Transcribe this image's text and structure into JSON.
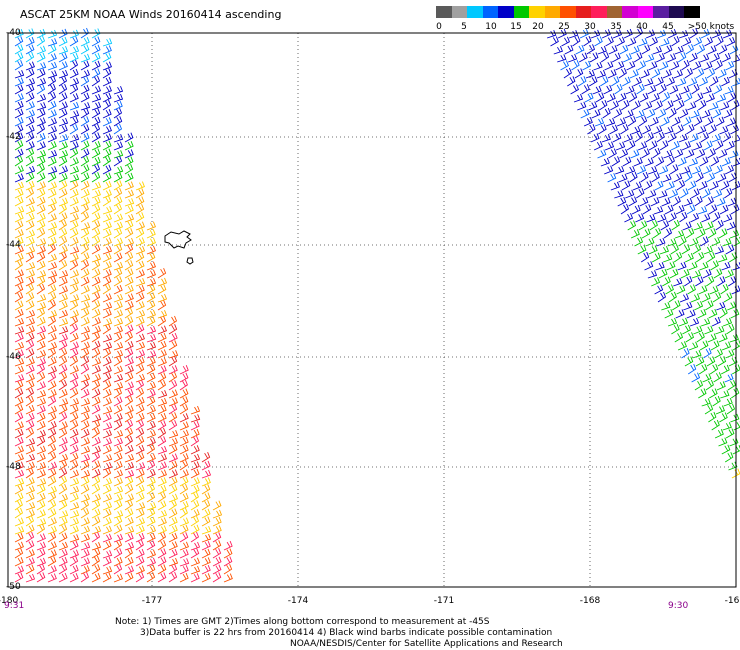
{
  "title": "ASCAT 25KM NOAA Winds 20160414 ascending",
  "legend": {
    "colors": [
      "#5a5a5a",
      "#a0a0a0",
      "#00c8ff",
      "#0064ff",
      "#0000c8",
      "#00c800",
      "#ffd200",
      "#ffaa00",
      "#ff5000",
      "#e61e1e",
      "#ff1e5a",
      "#a06432",
      "#d200d2",
      "#ff00ff",
      "#5a1ea0",
      "#1e0a50",
      "#000000"
    ],
    "labels": [
      "0",
      "5",
      "10",
      "15",
      "20",
      "25",
      "30",
      "35",
      "40",
      "45",
      ">50 knots"
    ]
  },
  "axes": {
    "x_ticks": [
      "-180",
      "-177",
      "-174",
      "-171",
      "-168",
      "-16"
    ],
    "y_ticks": [
      "-40",
      "-42",
      "-44",
      "-46",
      "-48",
      "-50"
    ]
  },
  "times": {
    "left": "9:31",
    "right": "9:30"
  },
  "notes": [
    "Note: 1) Times are GMT 2)Times along bottom correspond to measurement at -45S",
    "3)Data buffer is 22 hrs from 20160414 4) Black wind barbs indicate possible contamination",
    "NOAA/NESDIS/Center for Satellite Applications and Research"
  ],
  "map": {
    "lon_range": [
      -180,
      -165
    ],
    "lat_range": [
      -50,
      -40
    ],
    "grid": "dotted",
    "land": "Chatham Islands",
    "swaths": [
      {
        "position": "left",
        "wind_range_knots": "10-35"
      },
      {
        "position": "right",
        "wind_range_knots": "10-25"
      }
    ]
  }
}
